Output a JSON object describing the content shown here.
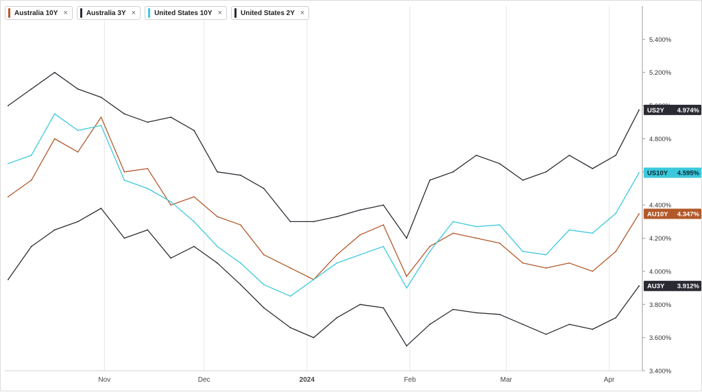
{
  "legend": [
    {
      "label": "Australia 10Y",
      "color": "#b2592a",
      "close": "×"
    },
    {
      "label": "Australia 3Y",
      "color": "#2a2a32",
      "close": "×"
    },
    {
      "label": "United States 10Y",
      "color": "#3bc8dc",
      "close": "×"
    },
    {
      "label": "United States 2Y",
      "color": "#2a2a32",
      "close": "×"
    }
  ],
  "chart_data": {
    "type": "line",
    "xlabel": "",
    "ylabel": "",
    "ylim": [
      3.4,
      5.6
    ],
    "y_ticks": [
      "3.400%",
      "3.600%",
      "3.800%",
      "4.000%",
      "4.200%",
      "4.400%",
      "4.600%",
      "4.800%",
      "5.000%",
      "5.200%",
      "5.400%"
    ],
    "x_ticks": [
      {
        "label": "Nov",
        "date": "2023-11-01",
        "bold": false
      },
      {
        "label": "Dec",
        "date": "2023-12-01",
        "bold": false
      },
      {
        "label": "2024",
        "date": "2024-01-01",
        "bold": true
      },
      {
        "label": "Feb",
        "date": "2024-02-01",
        "bold": false
      },
      {
        "label": "Mar",
        "date": "2024-03-01",
        "bold": false
      },
      {
        "label": "Apr",
        "date": "2024-04-01",
        "bold": false
      }
    ],
    "x_range": [
      "2023-10-02",
      "2024-04-11"
    ],
    "grid": "vertical",
    "series": [
      {
        "name": "Australia 10Y",
        "color": "#b2592a",
        "end_label": "AU10Y",
        "end_value_text": "4.347%",
        "last": 4.347,
        "x": [
          "2023-10-03",
          "2023-10-10",
          "2023-10-17",
          "2023-10-24",
          "2023-10-31",
          "2023-11-07",
          "2023-11-14",
          "2023-11-21",
          "2023-11-28",
          "2023-12-05",
          "2023-12-12",
          "2023-12-19",
          "2023-12-27",
          "2024-01-03",
          "2024-01-10",
          "2024-01-17",
          "2024-01-24",
          "2024-01-31",
          "2024-02-07",
          "2024-02-14",
          "2024-02-21",
          "2024-02-28",
          "2024-03-06",
          "2024-03-13",
          "2024-03-20",
          "2024-03-27",
          "2024-04-03",
          "2024-04-10"
        ],
        "y": [
          4.45,
          4.55,
          4.8,
          4.72,
          4.93,
          4.6,
          4.62,
          4.4,
          4.45,
          4.33,
          4.28,
          4.1,
          4.02,
          3.95,
          4.1,
          4.22,
          4.28,
          3.97,
          4.15,
          4.23,
          4.2,
          4.17,
          4.05,
          4.02,
          4.05,
          4.0,
          4.12,
          4.347
        ]
      },
      {
        "name": "Australia 3Y",
        "color": "#2a2a32",
        "end_label": "AU3Y",
        "end_value_text": "3.912%",
        "last": 3.912,
        "x": [
          "2023-10-03",
          "2023-10-10",
          "2023-10-17",
          "2023-10-24",
          "2023-10-31",
          "2023-11-07",
          "2023-11-14",
          "2023-11-21",
          "2023-11-28",
          "2023-12-05",
          "2023-12-12",
          "2023-12-19",
          "2023-12-27",
          "2024-01-03",
          "2024-01-10",
          "2024-01-17",
          "2024-01-24",
          "2024-01-31",
          "2024-02-07",
          "2024-02-14",
          "2024-02-21",
          "2024-02-28",
          "2024-03-06",
          "2024-03-13",
          "2024-03-20",
          "2024-03-27",
          "2024-04-03",
          "2024-04-10"
        ],
        "y": [
          3.95,
          4.15,
          4.25,
          4.3,
          4.38,
          4.2,
          4.25,
          4.08,
          4.15,
          4.05,
          3.92,
          3.78,
          3.66,
          3.6,
          3.72,
          3.8,
          3.78,
          3.55,
          3.68,
          3.77,
          3.75,
          3.74,
          3.68,
          3.62,
          3.68,
          3.65,
          3.72,
          3.912
        ]
      },
      {
        "name": "United States 10Y",
        "color": "#3bc8dc",
        "end_label": "US10Y",
        "end_value_text": "4.595%",
        "last": 4.595,
        "x": [
          "2023-10-03",
          "2023-10-10",
          "2023-10-17",
          "2023-10-24",
          "2023-10-31",
          "2023-11-07",
          "2023-11-14",
          "2023-11-21",
          "2023-11-28",
          "2023-12-05",
          "2023-12-12",
          "2023-12-19",
          "2023-12-27",
          "2024-01-03",
          "2024-01-10",
          "2024-01-17",
          "2024-01-24",
          "2024-01-31",
          "2024-02-07",
          "2024-02-14",
          "2024-02-21",
          "2024-02-28",
          "2024-03-06",
          "2024-03-13",
          "2024-03-20",
          "2024-03-27",
          "2024-04-03",
          "2024-04-10"
        ],
        "y": [
          4.65,
          4.7,
          4.95,
          4.85,
          4.88,
          4.55,
          4.5,
          4.42,
          4.3,
          4.15,
          4.05,
          3.92,
          3.85,
          3.95,
          4.05,
          4.1,
          4.15,
          3.9,
          4.12,
          4.3,
          4.27,
          4.28,
          4.12,
          4.1,
          4.25,
          4.23,
          4.35,
          4.595
        ]
      },
      {
        "name": "United States 2Y",
        "color": "#2a2a32",
        "end_label": "US2Y",
        "end_value_text": "4.974%",
        "last": 4.974,
        "x": [
          "2023-10-03",
          "2023-10-10",
          "2023-10-17",
          "2023-10-24",
          "2023-10-31",
          "2023-11-07",
          "2023-11-14",
          "2023-11-21",
          "2023-11-28",
          "2023-12-05",
          "2023-12-12",
          "2023-12-19",
          "2023-12-27",
          "2024-01-03",
          "2024-01-10",
          "2024-01-17",
          "2024-01-24",
          "2024-01-31",
          "2024-02-07",
          "2024-02-14",
          "2024-02-21",
          "2024-02-28",
          "2024-03-06",
          "2024-03-13",
          "2024-03-20",
          "2024-03-27",
          "2024-04-03",
          "2024-04-10"
        ],
        "y": [
          5.0,
          5.1,
          5.2,
          5.1,
          5.05,
          4.95,
          4.9,
          4.93,
          4.85,
          4.6,
          4.58,
          4.5,
          4.3,
          4.3,
          4.33,
          4.37,
          4.4,
          4.2,
          4.55,
          4.6,
          4.7,
          4.65,
          4.55,
          4.6,
          4.7,
          4.62,
          4.7,
          4.974
        ]
      }
    ]
  }
}
